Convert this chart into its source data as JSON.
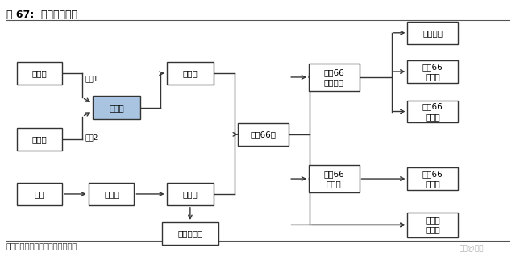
{
  "title": "图 67:  己二腈产业链",
  "source_text": "数据来源：华经情报网，东北证券",
  "watermark": "头条@管墨",
  "highlight_color": "#a8c4e0",
  "box_color": "#ffffff",
  "box_edge_color": "#333333",
  "font_size": 7.5,
  "title_font_size": 9,
  "source_font_size": 7
}
